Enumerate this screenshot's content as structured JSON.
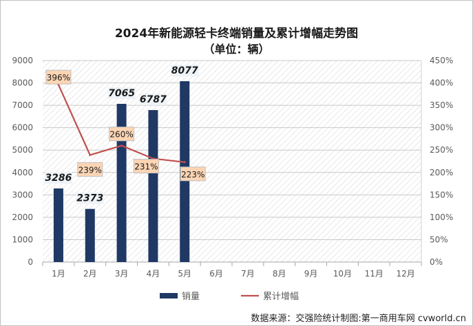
{
  "chart_data": {
    "type": "bar",
    "title": "2024年新能源轻卡终端销量及累计增幅走势图",
    "subtitle": "（单位：辆）",
    "categories": [
      "1月",
      "2月",
      "3月",
      "4月",
      "5月",
      "6月",
      "7月",
      "8月",
      "9月",
      "10月",
      "11月",
      "12月"
    ],
    "series": [
      {
        "name": "销量",
        "type": "bar",
        "axis": "left",
        "color": "#1f3864",
        "values": [
          3286,
          2373,
          7065,
          6787,
          8077,
          null,
          null,
          null,
          null,
          null,
          null,
          null
        ],
        "labels": [
          "3286",
          "2373",
          "7065",
          "6787",
          "8077"
        ]
      },
      {
        "name": "累计增幅",
        "type": "line",
        "axis": "right",
        "color": "#c0504d",
        "values": [
          396,
          239,
          260,
          231,
          223,
          null,
          null,
          null,
          null,
          null,
          null,
          null
        ],
        "labels": [
          "396%",
          "239%",
          "260%",
          "231%",
          "223%"
        ]
      }
    ],
    "y_left": {
      "min": 0,
      "max": 9000,
      "ticks": [
        "0",
        "1000",
        "2000",
        "3000",
        "4000",
        "5000",
        "6000",
        "7000",
        "8000",
        "9000"
      ]
    },
    "y_right": {
      "min": 0,
      "max": 450,
      "ticks": [
        "0%",
        "50%",
        "100%",
        "150%",
        "200%",
        "250%",
        "300%",
        "350%",
        "400%",
        "450%"
      ]
    },
    "grid": true,
    "legend_position": "bottom",
    "source": "数据来源：交强险统计制图:第一商用车网 cvworld.cn"
  }
}
